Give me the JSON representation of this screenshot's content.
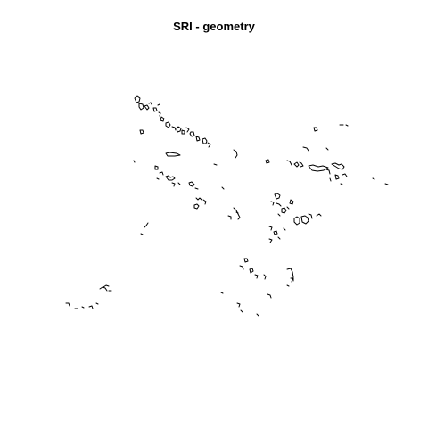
{
  "title": "SRI - geometry",
  "colors": {
    "background": "#ffffff",
    "stroke": "#000000"
  }
}
